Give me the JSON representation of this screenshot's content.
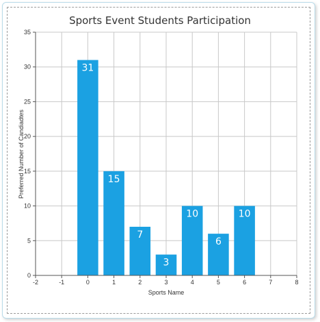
{
  "chart_data": {
    "type": "bar",
    "title": "Sports Event Students Participation",
    "xlabel": "Sports Name",
    "ylabel": "Preferred Number of Candiadtes",
    "x": [
      0,
      1,
      2,
      3,
      4,
      5,
      6
    ],
    "values": [
      31,
      15,
      7,
      3,
      10,
      6,
      10
    ],
    "xlim": [
      -2,
      8
    ],
    "ylim": [
      0,
      35
    ],
    "xticks": [
      "-2",
      "-1",
      "0",
      "1",
      "2",
      "3",
      "4",
      "5",
      "6",
      "7",
      "8"
    ],
    "yticks": [
      "0",
      "5",
      "10",
      "15",
      "20",
      "25",
      "30",
      "35"
    ],
    "grid": true,
    "bar_color": "#1ba1e2",
    "data_labels": [
      "31",
      "15",
      "7",
      "3",
      "10",
      "6",
      "10"
    ]
  }
}
